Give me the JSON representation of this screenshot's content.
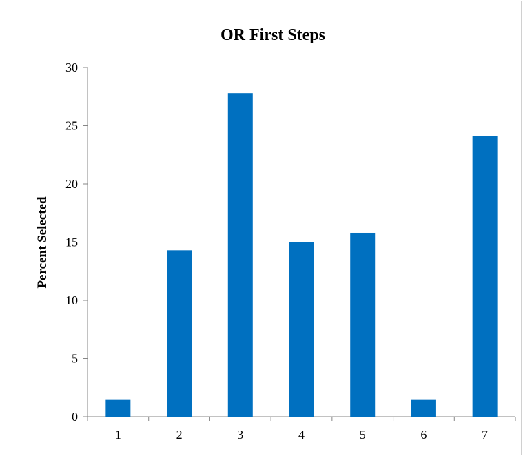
{
  "chart_data": {
    "type": "bar",
    "title": "OR First Steps",
    "xlabel": "",
    "ylabel": "Percent Selected",
    "categories": [
      "1",
      "2",
      "3",
      "4",
      "5",
      "6",
      "7"
    ],
    "values": [
      1.5,
      14.3,
      27.8,
      15.0,
      15.8,
      1.5,
      24.1
    ],
    "ylim": [
      0,
      30
    ],
    "yticks": [
      0,
      5,
      10,
      15,
      20,
      25,
      30
    ],
    "grid": false,
    "legend": "none",
    "bar_color": "#0070C0",
    "axis_color": "#868686"
  }
}
